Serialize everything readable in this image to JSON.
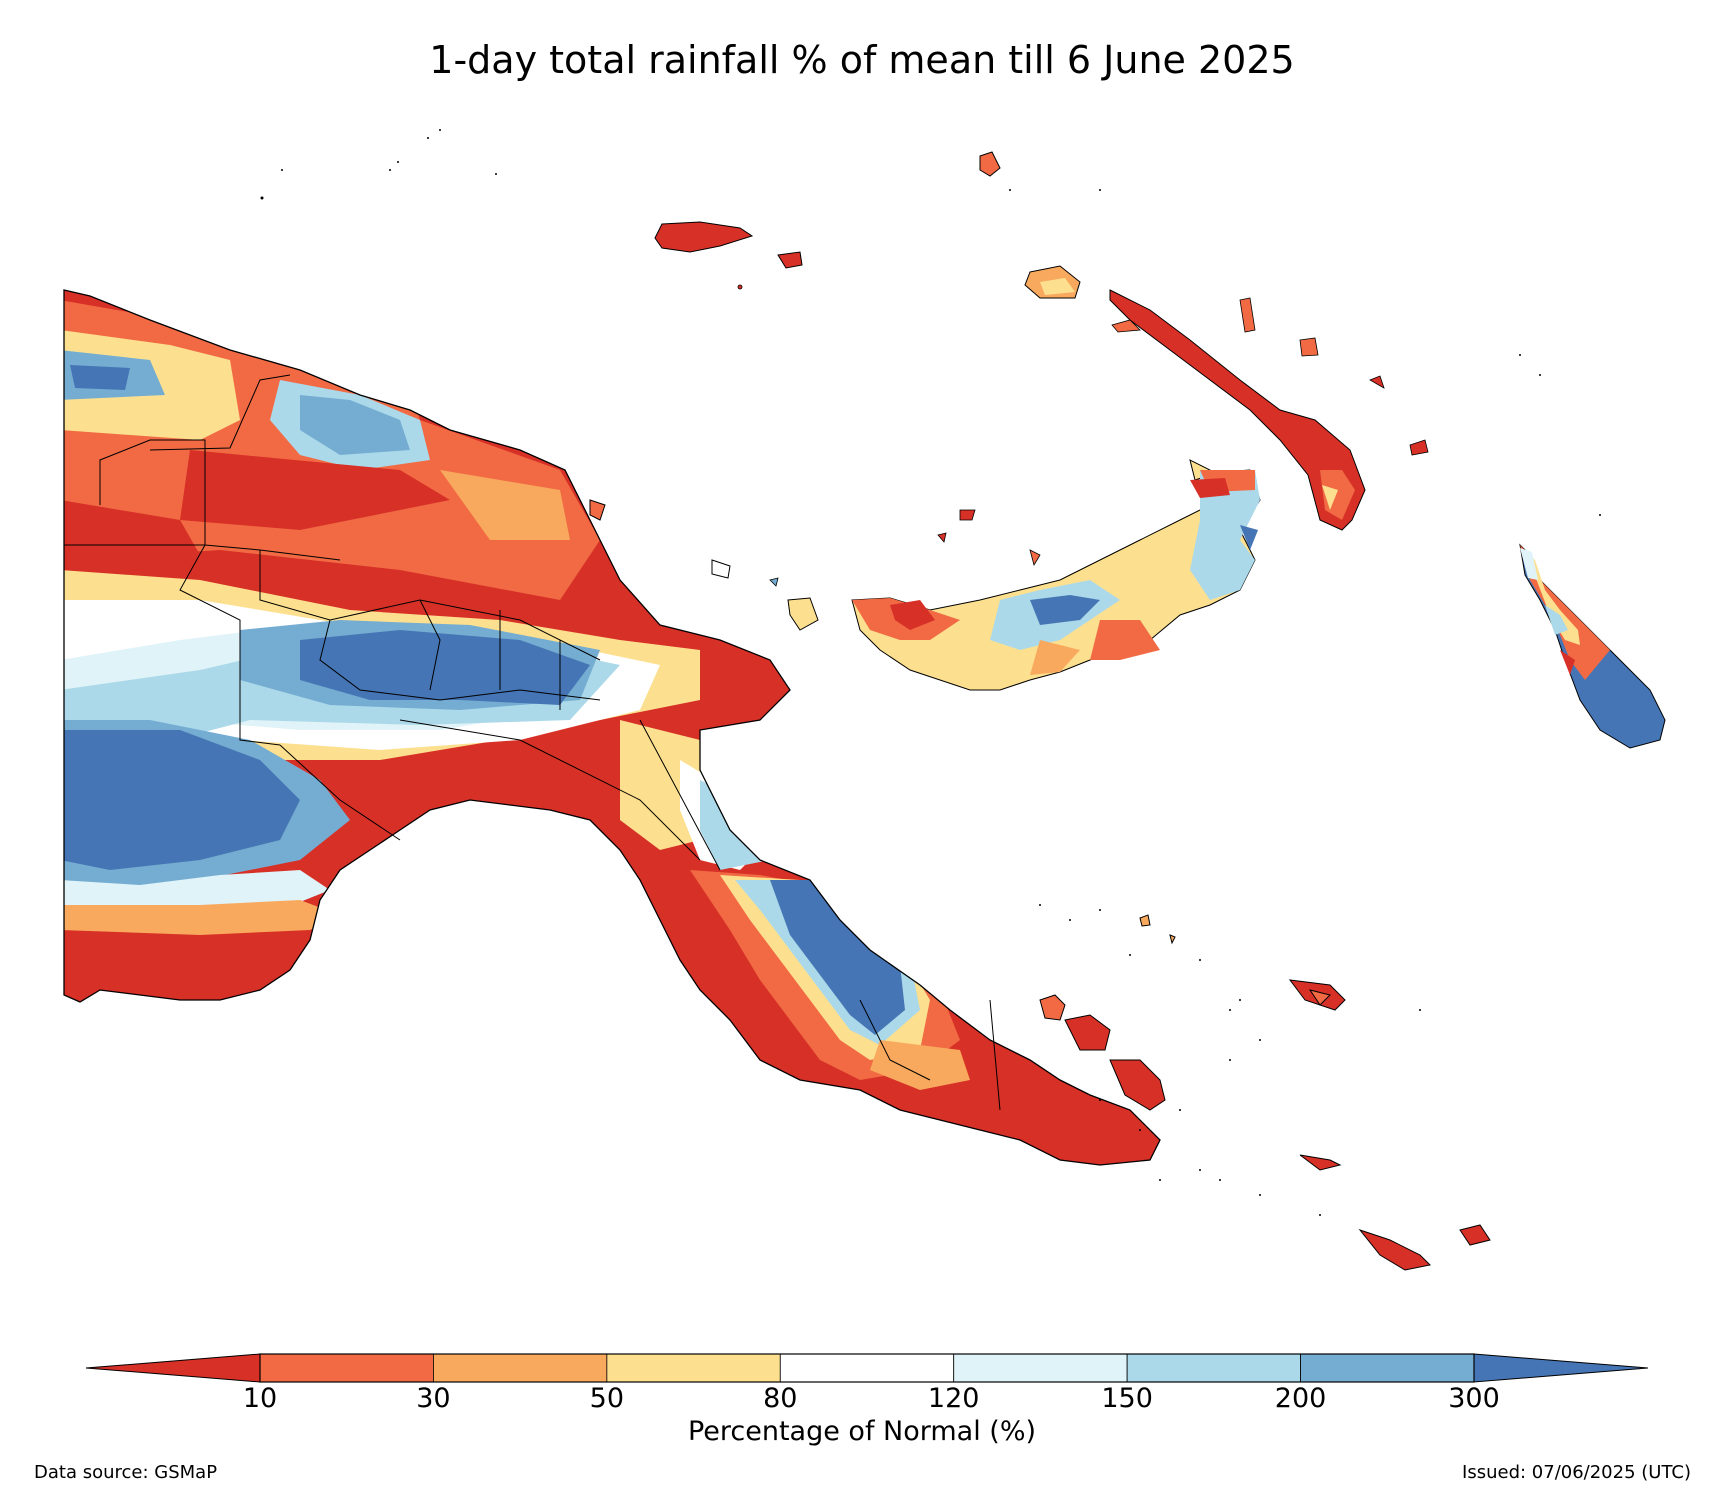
{
  "title": "1-day total rainfall % of mean till 6 June 2025",
  "legend": {
    "label": "Percentage of Normal (%)",
    "ticks": [
      "10",
      "30",
      "50",
      "80",
      "120",
      "150",
      "200",
      "300"
    ],
    "colors": [
      "#d73027",
      "#f16a43",
      "#f8a95e",
      "#fde08f",
      "#ffffff",
      "#e0f3f8",
      "#abd9e9",
      "#74add1",
      "#4575b4"
    ]
  },
  "footer": {
    "source": "Data source: GSMaP",
    "issued": "Issued: 07/06/2025 (UTC)"
  }
}
